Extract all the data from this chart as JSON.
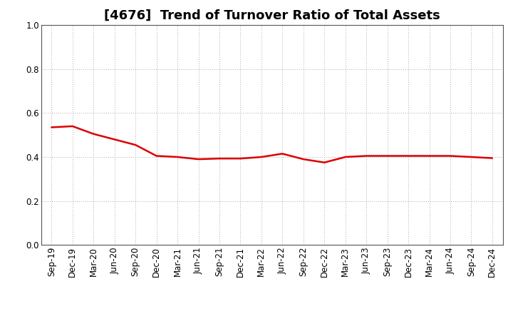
{
  "title": "[4676]  Trend of Turnover Ratio of Total Assets",
  "line_color": "#dd0000",
  "line_width": 1.8,
  "background_color": "#ffffff",
  "grid_color": "#aaaaaa",
  "ylim": [
    0.0,
    1.0
  ],
  "yticks": [
    0.0,
    0.2,
    0.4,
    0.6,
    0.8,
    1.0
  ],
  "x_labels": [
    "Sep-19",
    "Dec-19",
    "Mar-20",
    "Jun-20",
    "Sep-20",
    "Dec-20",
    "Mar-21",
    "Jun-21",
    "Sep-21",
    "Dec-21",
    "Mar-22",
    "Jun-22",
    "Sep-22",
    "Dec-22",
    "Mar-23",
    "Jun-23",
    "Sep-23",
    "Dec-23",
    "Mar-24",
    "Jun-24",
    "Sep-24",
    "Dec-24"
  ],
  "values": [
    0.535,
    0.54,
    0.505,
    0.48,
    0.455,
    0.405,
    0.4,
    0.39,
    0.393,
    0.393,
    0.4,
    0.415,
    0.39,
    0.375,
    0.4,
    0.405,
    0.405,
    0.405,
    0.405,
    0.405,
    0.4,
    0.395
  ],
  "title_fontsize": 13,
  "tick_fontsize": 8.5
}
